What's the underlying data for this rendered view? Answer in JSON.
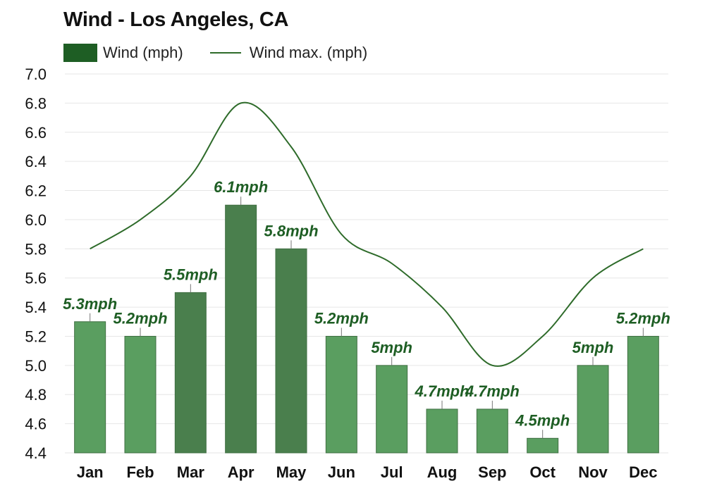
{
  "title": "Wind - Los Angeles, CA",
  "legend": {
    "bar_label": "Wind (mph)",
    "line_label": "Wind max. (mph)"
  },
  "colors": {
    "bar_light": "#5a9e60",
    "bar_dark": "#4a7f4d",
    "line": "#2e6b2a",
    "label": "#1e5e24",
    "grid": "#e6e6e6"
  },
  "chart_data": {
    "type": "bar",
    "title": "Wind - Los Angeles, CA",
    "categories": [
      "Jan",
      "Feb",
      "Mar",
      "Apr",
      "May",
      "Jun",
      "Jul",
      "Aug",
      "Sep",
      "Oct",
      "Nov",
      "Dec"
    ],
    "series": [
      {
        "name": "Wind (mph)",
        "type": "bar",
        "values": [
          5.3,
          5.2,
          5.5,
          6.1,
          5.8,
          5.2,
          5.0,
          4.7,
          4.7,
          4.5,
          5.0,
          5.2
        ],
        "data_labels": [
          "5.3mph",
          "5.2mph",
          "5.5mph",
          "6.1mph",
          "5.8mph",
          "5.2mph",
          "5mph",
          "4.7mph",
          "4.7mph",
          "4.5mph",
          "5mph",
          "5.2mph"
        ]
      },
      {
        "name": "Wind max. (mph)",
        "type": "line",
        "values": [
          5.8,
          6.0,
          6.3,
          6.8,
          6.5,
          5.9,
          5.7,
          5.4,
          5.0,
          5.2,
          5.6,
          5.8
        ]
      }
    ],
    "ylim": [
      4.4,
      7.0
    ],
    "yticks": [
      "7.0",
      "6.8",
      "6.6",
      "6.4",
      "6.2",
      "6.0",
      "5.8",
      "5.6",
      "5.4",
      "5.2",
      "5.0",
      "4.8",
      "4.6",
      "4.4"
    ],
    "grid": true,
    "legend_position": "top-left"
  }
}
